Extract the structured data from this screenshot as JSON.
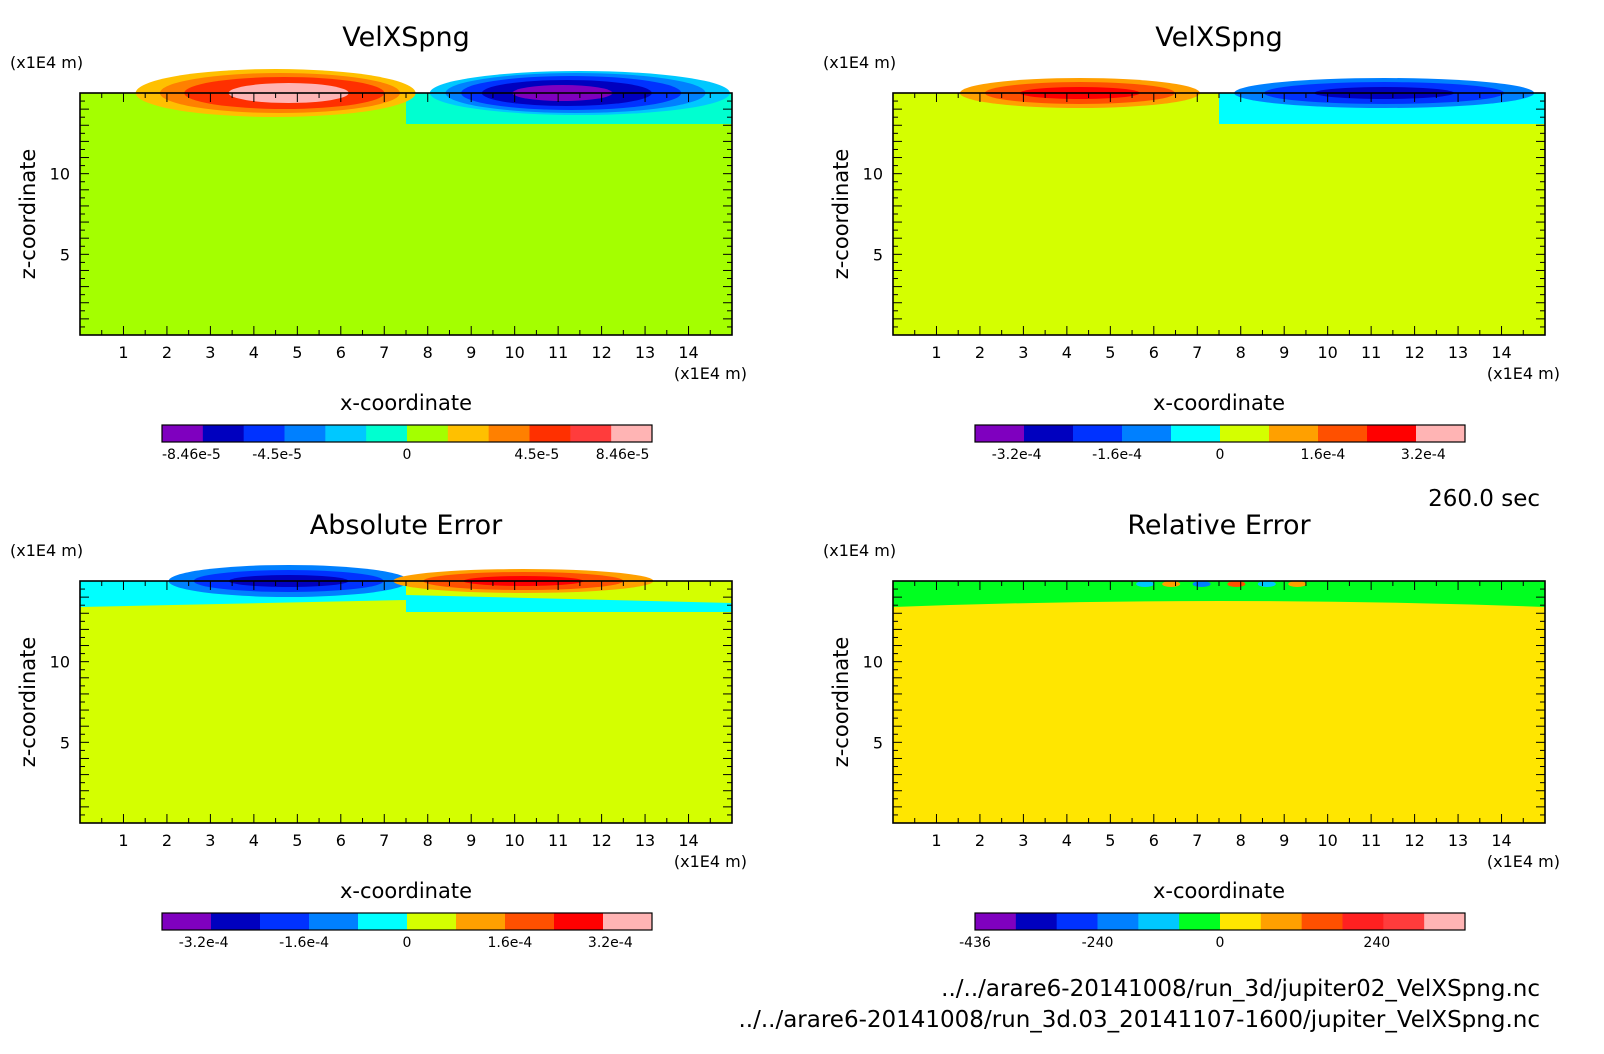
{
  "time_label": "260.0 sec",
  "files": [
    "../../arare6-20141008/run_3d/jupiter02_VelXSpng.nc",
    "../../arare6-20141008/run_3d.03_20141107-1600/jupiter_VelXSpng.nc"
  ],
  "chart_data": [
    {
      "type": "heatmap",
      "title": "VelXSpng",
      "xlabel": "x-coordinate",
      "ylabel": "z-coordinate",
      "x_unit": "(x1E4 m)",
      "y_unit": "(x1E4 m)",
      "xlim": [
        0,
        15
      ],
      "ylim": [
        0,
        15
      ],
      "x_ticks": [
        "1",
        "2",
        "3",
        "4",
        "5",
        "6",
        "7",
        "8",
        "9",
        "10",
        "11",
        "12",
        "13",
        "14"
      ],
      "y_ticks": [
        "5",
        "10"
      ],
      "background_color": "#a4ff00",
      "colorbar": {
        "colors": [
          "#7f00bf",
          "#0000bf",
          "#0032ff",
          "#0080ff",
          "#00c8ff",
          "#00ffd0",
          "#a4ff00",
          "#ffc000",
          "#ff8000",
          "#ff3000",
          "#ff3c3c",
          "#ffb4b4"
        ],
        "labels": [
          "-8.46e-5",
          "-4.5e-5",
          "0",
          "4.5e-5",
          "8.46e-5"
        ]
      }
    },
    {
      "type": "heatmap",
      "title": "VelXSpng",
      "xlabel": "x-coordinate",
      "ylabel": "z-coordinate",
      "x_unit": "(x1E4 m)",
      "y_unit": "(x1E4 m)",
      "xlim": [
        0,
        15
      ],
      "ylim": [
        0,
        15
      ],
      "x_ticks": [
        "1",
        "2",
        "3",
        "4",
        "5",
        "6",
        "7",
        "8",
        "9",
        "10",
        "11",
        "12",
        "13",
        "14"
      ],
      "y_ticks": [
        "5",
        "10"
      ],
      "background_color": "#d4ff00",
      "colorbar": {
        "colors": [
          "#7f00bf",
          "#0000bf",
          "#0032ff",
          "#0080ff",
          "#00ffff",
          "#d4ff00",
          "#ffa000",
          "#ff5000",
          "#ff0000",
          "#ffb4b4"
        ],
        "labels": [
          "-3.2e-4",
          "-1.6e-4",
          "0",
          "1.6e-4",
          "3.2e-4"
        ]
      }
    },
    {
      "type": "heatmap",
      "title": "Absolute Error",
      "xlabel": "x-coordinate",
      "ylabel": "z-coordinate",
      "x_unit": "(x1E4 m)",
      "y_unit": "(x1E4 m)",
      "xlim": [
        0,
        15
      ],
      "ylim": [
        0,
        15
      ],
      "x_ticks": [
        "1",
        "2",
        "3",
        "4",
        "5",
        "6",
        "7",
        "8",
        "9",
        "10",
        "11",
        "12",
        "13",
        "14"
      ],
      "y_ticks": [
        "5",
        "10"
      ],
      "background_color": "#d4ff00",
      "colorbar": {
        "colors": [
          "#7f00bf",
          "#0000bf",
          "#0032ff",
          "#0080ff",
          "#00ffff",
          "#d4ff00",
          "#ffa000",
          "#ff5000",
          "#ff0000",
          "#ffb4b4"
        ],
        "labels": [
          "-3.2e-4",
          "-1.6e-4",
          "0",
          "1.6e-4",
          "3.2e-4"
        ]
      }
    },
    {
      "type": "heatmap",
      "title": "Relative Error",
      "xlabel": "x-coordinate",
      "ylabel": "z-coordinate",
      "x_unit": "(x1E4 m)",
      "y_unit": "(x1E4 m)",
      "xlim": [
        0,
        15
      ],
      "ylim": [
        0,
        15
      ],
      "x_ticks": [
        "1",
        "2",
        "3",
        "4",
        "5",
        "6",
        "7",
        "8",
        "9",
        "10",
        "11",
        "12",
        "13",
        "14"
      ],
      "y_ticks": [
        "5",
        "10"
      ],
      "background_color": "#ffe600",
      "colorbar": {
        "colors": [
          "#7f00bf",
          "#0000bf",
          "#0032ff",
          "#0080ff",
          "#00c8ff",
          "#00ff20",
          "#ffe600",
          "#ffa000",
          "#ff5000",
          "#ff2020",
          "#ff3c3c",
          "#ffb4b4"
        ],
        "labels": [
          "-436",
          "-240",
          "0",
          "240"
        ]
      }
    }
  ]
}
